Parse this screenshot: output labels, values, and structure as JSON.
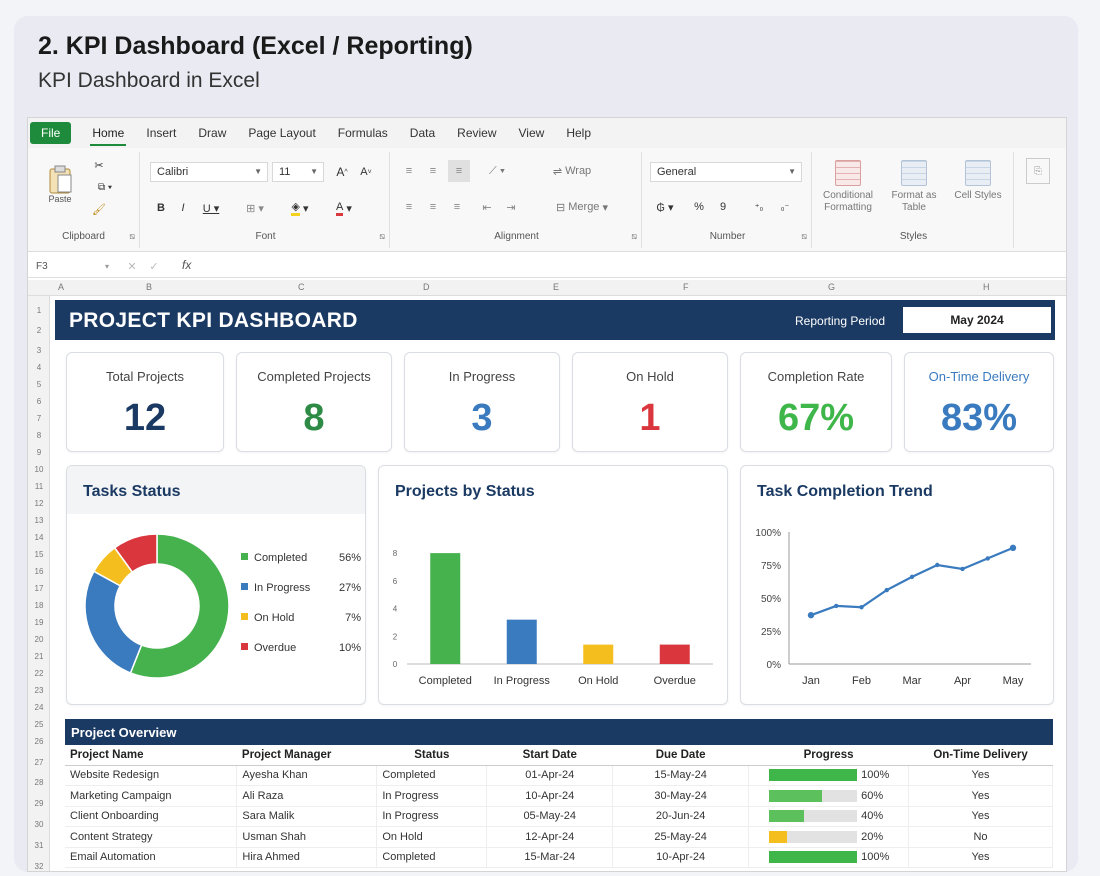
{
  "headline": "2. KPI Dashboard (Excel / Reporting)",
  "subline": "KPI Dashboard in Excel",
  "ribbon": {
    "tabs": [
      "File",
      "Home",
      "Insert",
      "Draw",
      "Page Layout",
      "Formulas",
      "Data",
      "Review",
      "View",
      "Help"
    ],
    "active_tab": "Home",
    "groups": [
      "Clipboard",
      "Font",
      "Alignment",
      "Number",
      "Styles"
    ],
    "font_name": "Calibri",
    "font_size": "11",
    "number_format": "General",
    "paste_label": "Paste",
    "wrap_label": "Wrap",
    "merge_label": "Merge",
    "conditional_formatting": "Conditional Formatting",
    "format_as_table": "Format as Table",
    "cell_styles": "Cell Styles",
    "name_box": "F3"
  },
  "colors": {
    "navy": "#1b3a63",
    "green": "#2e9a46",
    "blue": "#3a7bbf",
    "yellow": "#f5be1f",
    "red": "#d9363e",
    "bright_green": "#3fb64a"
  },
  "dashboard": {
    "title": "PROJECT KPI DASHBOARD",
    "reporting_period_label": "Reporting Period",
    "reporting_period_value": "May 2024"
  },
  "kpis": [
    {
      "label": "Total Projects",
      "value": "12",
      "color": "#1b3a63"
    },
    {
      "label": "Completed Projects",
      "value": "8",
      "color": "#2e8b46"
    },
    {
      "label": "In Progress",
      "value": "3",
      "color": "#3a7bbf"
    },
    {
      "label": "On Hold",
      "value": "1",
      "color": "#d9363e"
    },
    {
      "label": "Completion Rate",
      "value": "67%",
      "color": "#3fb64a"
    },
    {
      "label": "On-Time Delivery",
      "value": "83%",
      "color": "#3a7bbf"
    }
  ],
  "panels": {
    "tasks_status": "Tasks Status",
    "projects_by_status": "Projects by Status",
    "task_completion_trend": "Task Completion Trend"
  },
  "chart_data": [
    {
      "type": "pie",
      "title": "Tasks Status",
      "categories": [
        "Completed",
        "In Progress",
        "On Hold",
        "Overdue"
      ],
      "values": [
        56,
        27,
        7,
        10
      ],
      "labels": [
        "56%",
        "27%",
        "7%",
        "10%"
      ],
      "colors": [
        "#46b24d",
        "#3a7bbf",
        "#f5be1f",
        "#d9363e"
      ],
      "legend": "right"
    },
    {
      "type": "bar",
      "title": "Projects by Status",
      "categories": [
        "Completed",
        "In Progress",
        "On Hold",
        "Overdue"
      ],
      "values": [
        8,
        3.2,
        1.4,
        1.4
      ],
      "colors": [
        "#46b24d",
        "#3a7bbf",
        "#f5be1f",
        "#d9363e"
      ],
      "yticks": [
        "8",
        "6",
        "4",
        "2",
        "0"
      ],
      "ylim": [
        0,
        10
      ]
    },
    {
      "type": "line",
      "title": "Task Completion Trend",
      "x": [
        "Jan",
        "",
        "Feb",
        "",
        "Mar",
        "",
        "Apr",
        "",
        "May"
      ],
      "xticks": [
        "Jan",
        "Feb",
        "Mar",
        "Apr",
        "May"
      ],
      "values": [
        37,
        44,
        43,
        56,
        66,
        75,
        72,
        80,
        88
      ],
      "yticks": [
        "100%",
        "75%",
        "50%",
        "25%",
        "0%"
      ],
      "ylim": [
        0,
        100
      ],
      "color": "#3a7bbf"
    }
  ],
  "table": {
    "title": "Project Overview",
    "columns": [
      "Project Name",
      "Project Manager",
      "Status",
      "Start Date",
      "Due Date",
      "Progress",
      "On-Time Delivery"
    ],
    "rows": [
      {
        "name": "Website Redesign",
        "manager": "Ayesha Khan",
        "status": "Completed",
        "start": "01-Apr-24",
        "due": "15-May-24",
        "progress": 100,
        "progress_label": "100%",
        "ontime": "Yes"
      },
      {
        "name": "Marketing Campaign",
        "manager": "Ali Raza",
        "status": "In Progress",
        "start": "10-Apr-24",
        "due": "30-May-24",
        "progress": 60,
        "progress_label": "60%",
        "ontime": "Yes"
      },
      {
        "name": "Client Onboarding",
        "manager": "Sara Malik",
        "status": "In Progress",
        "start": "05-May-24",
        "due": "20-Jun-24",
        "progress": 40,
        "progress_label": "40%",
        "ontime": "Yes"
      },
      {
        "name": "Content Strategy",
        "manager": "Usman Shah",
        "status": "On Hold",
        "start": "12-Apr-24",
        "due": "25-May-24",
        "progress": 20,
        "progress_label": "20%",
        "ontime": "No"
      },
      {
        "name": "Email Automation",
        "manager": "Hira Ahmed",
        "status": "Completed",
        "start": "15-Mar-24",
        "due": "10-Apr-24",
        "progress": 100,
        "progress_label": "100%",
        "ontime": "Yes"
      }
    ]
  }
}
